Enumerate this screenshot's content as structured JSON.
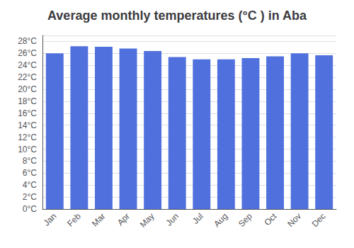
{
  "chart_data": {
    "type": "bar",
    "title": "Average monthly temperatures (°C ) in Aba",
    "categories": [
      "Jan",
      "Feb",
      "Mar",
      "Apr",
      "May",
      "Jun",
      "Jul",
      "Aug",
      "Sep",
      "Oct",
      "Nov",
      "Dec"
    ],
    "values": [
      26.0,
      27.2,
      27.1,
      26.8,
      26.4,
      25.4,
      25.0,
      25.0,
      25.2,
      25.5,
      26.0,
      25.7
    ],
    "ylim": [
      0,
      29
    ],
    "yticks": [
      {
        "value": 0,
        "label": "0°C"
      },
      {
        "value": 2,
        "label": "2°C"
      },
      {
        "value": 4,
        "label": "4°C"
      },
      {
        "value": 6,
        "label": "6°C"
      },
      {
        "value": 8,
        "label": "8°C"
      },
      {
        "value": 10,
        "label": "10°C"
      },
      {
        "value": 12,
        "label": "12°C"
      },
      {
        "value": 14,
        "label": "14°C"
      },
      {
        "value": 16,
        "label": "16°C"
      },
      {
        "value": 18,
        "label": "18°C"
      },
      {
        "value": 20,
        "label": "20°C"
      },
      {
        "value": 22,
        "label": "22°C"
      },
      {
        "value": 24,
        "label": "24°C"
      },
      {
        "value": 26,
        "label": "26°C"
      },
      {
        "value": 28,
        "label": "28°C"
      }
    ],
    "grid": true
  }
}
